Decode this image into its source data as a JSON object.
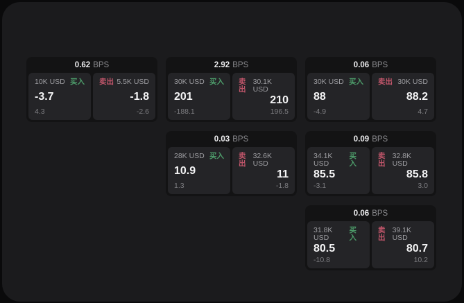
{
  "labels": {
    "bps_unit": "BPS",
    "buy": "买入",
    "sell": "卖出"
  },
  "colors": {
    "buy": "#4d9c6a",
    "sell": "#c2566b",
    "container_bg": "#1b1b1d",
    "card_bg": "#131314",
    "panel_bg": "#242427"
  },
  "cards": [
    {
      "bps": "0.62",
      "row": 0,
      "col": 0,
      "buy": {
        "amount": "10K USD",
        "value": "-3.7",
        "sub": "4.3"
      },
      "sell": {
        "amount": "5.5K USD",
        "value": "-1.8",
        "sub": "-2.6"
      }
    },
    {
      "bps": "2.92",
      "row": 0,
      "col": 1,
      "buy": {
        "amount": "30K USD",
        "value": "201",
        "sub": "-188.1"
      },
      "sell": {
        "amount": "30.1K USD",
        "value": "210",
        "sub": "196.5"
      }
    },
    {
      "bps": "0.06",
      "row": 0,
      "col": 2,
      "buy": {
        "amount": "30K USD",
        "value": "88",
        "sub": "-4.9"
      },
      "sell": {
        "amount": "30K USD",
        "value": "88.2",
        "sub": "4.7"
      }
    },
    {
      "bps": "0.03",
      "row": 1,
      "col": 1,
      "buy": {
        "amount": "28K USD",
        "value": "10.9",
        "sub": "1.3"
      },
      "sell": {
        "amount": "32.6K USD",
        "value": "11",
        "sub": "-1.8"
      }
    },
    {
      "bps": "0.09",
      "row": 1,
      "col": 2,
      "buy": {
        "amount": "34.1K USD",
        "value": "85.5",
        "sub": "-3.1"
      },
      "sell": {
        "amount": "32.8K USD",
        "value": "85.8",
        "sub": "3.0"
      }
    },
    {
      "bps": "0.06",
      "row": 2,
      "col": 2,
      "buy": {
        "amount": "31.8K USD",
        "value": "80.5",
        "sub": "-10.8"
      },
      "sell": {
        "amount": "39.1K USD",
        "value": "80.7",
        "sub": "10.2"
      }
    }
  ]
}
